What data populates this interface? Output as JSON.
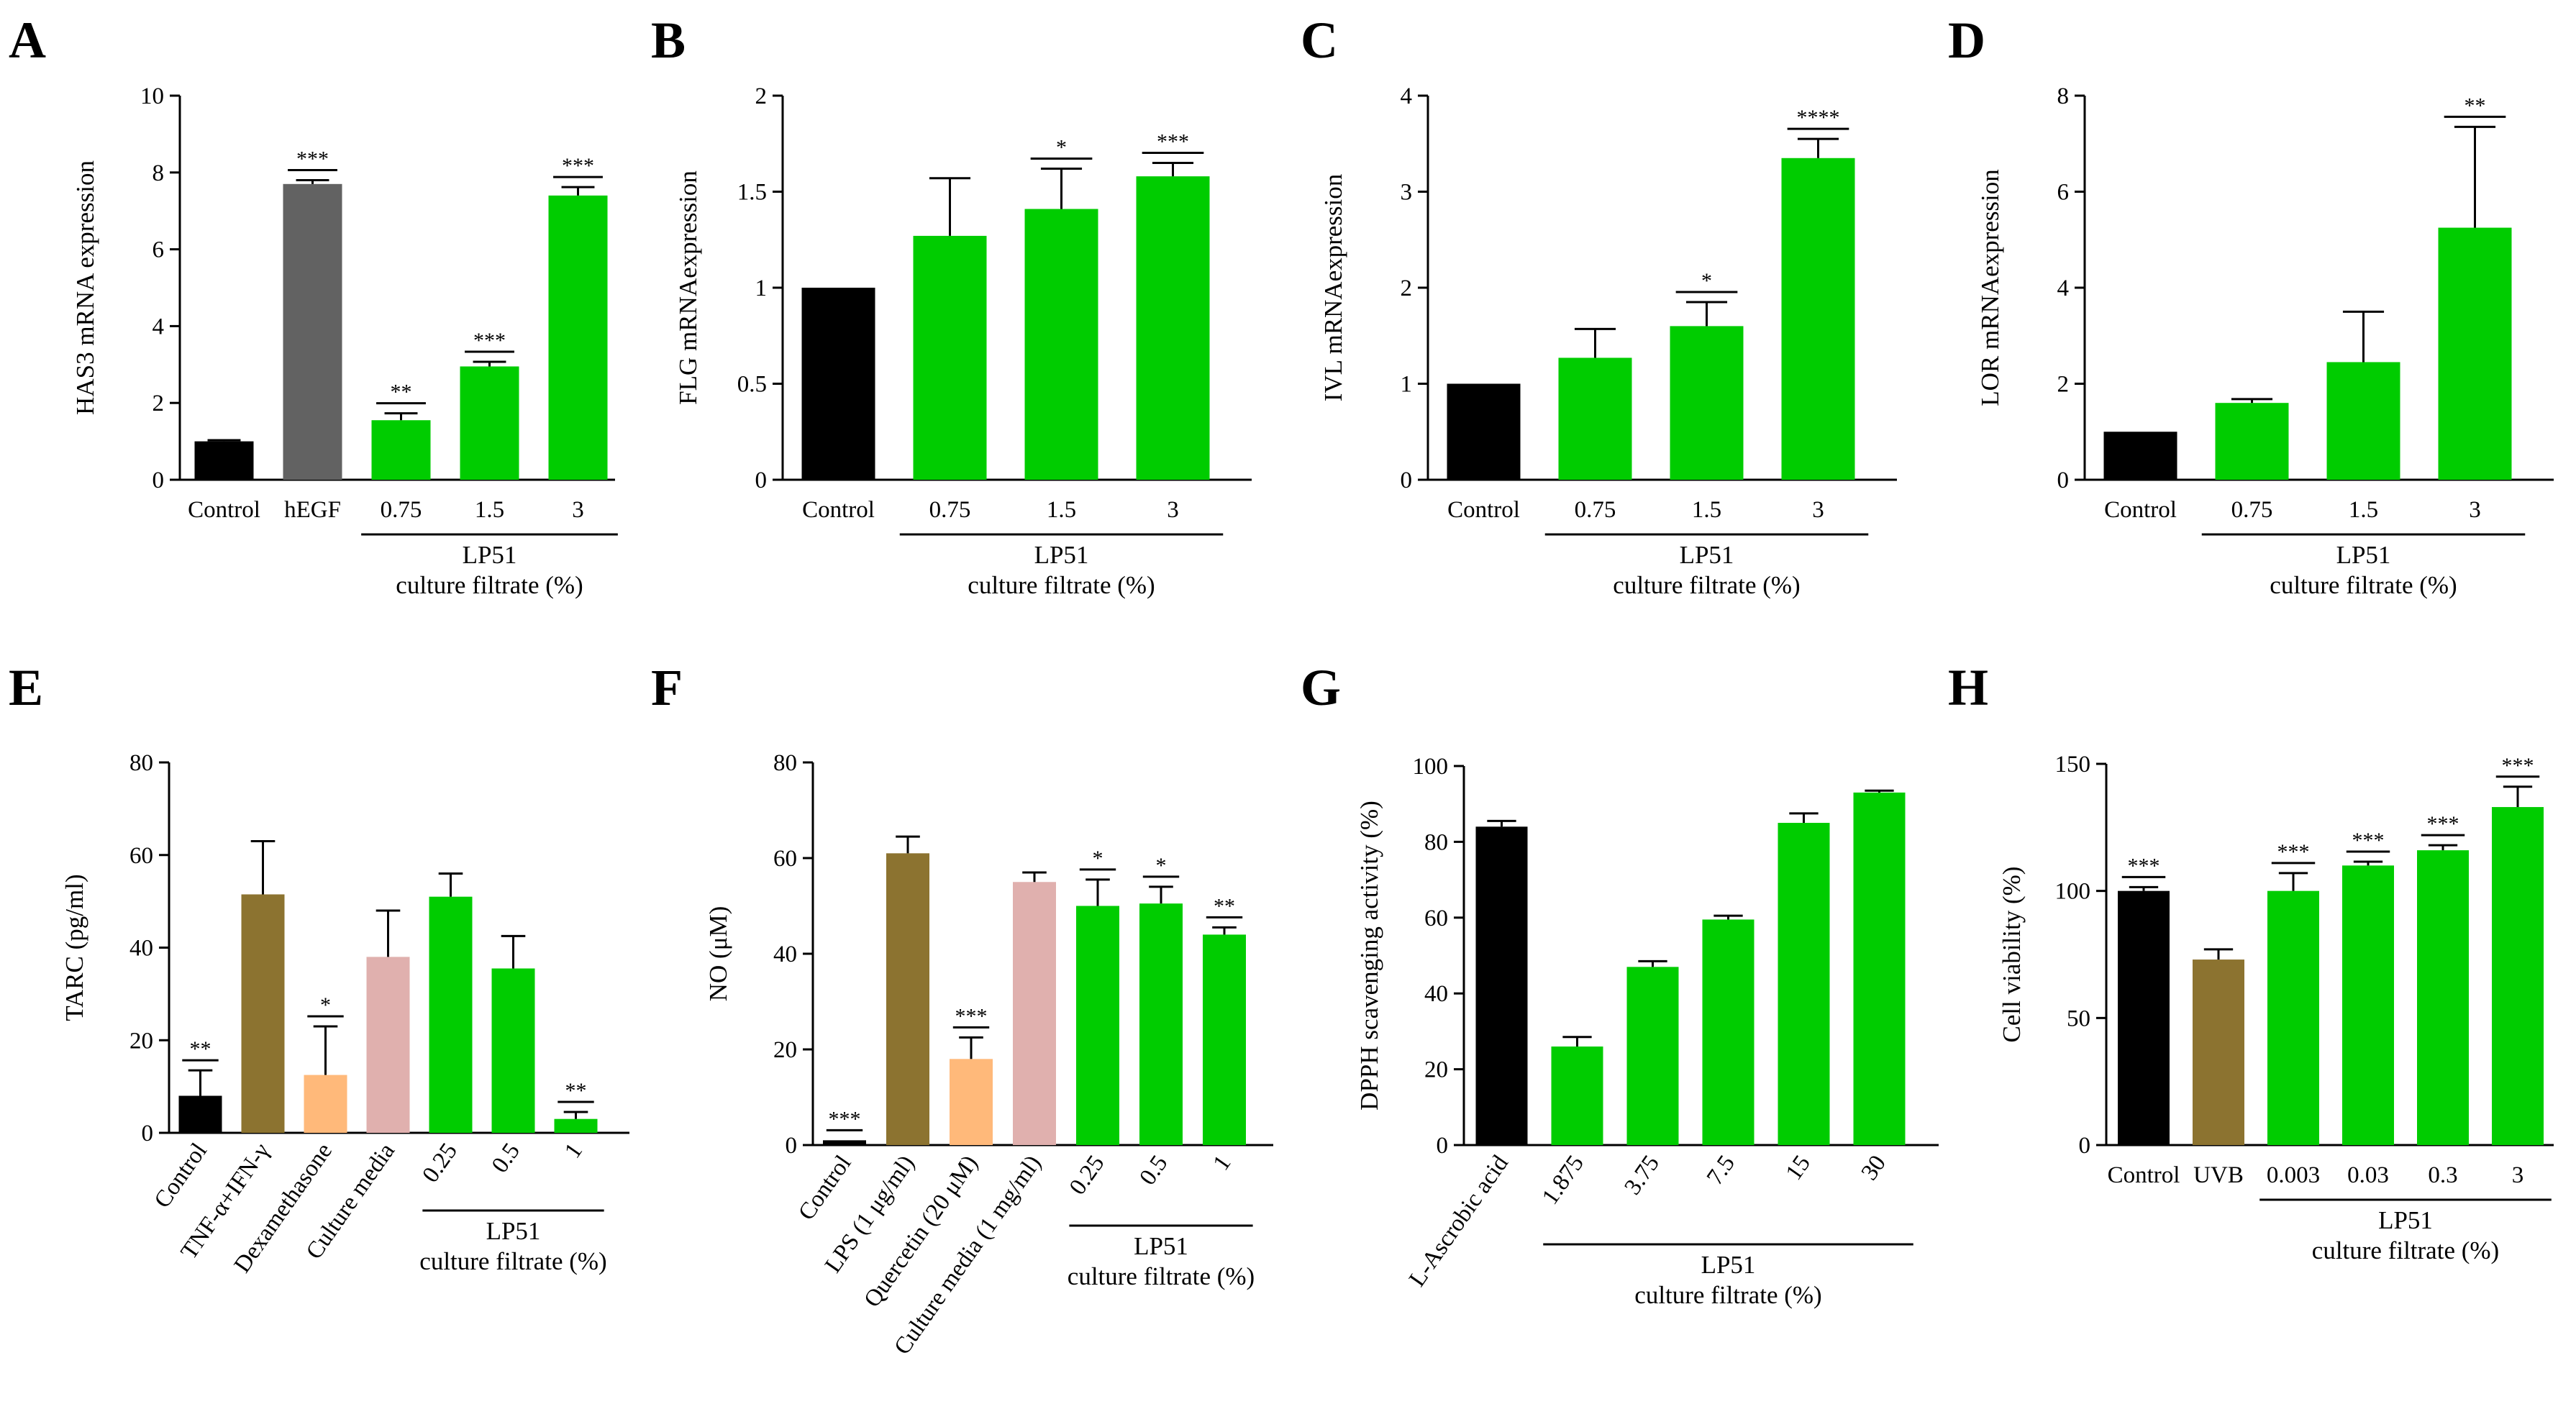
{
  "chart_data": [
    {
      "type": "bar",
      "panel": "A",
      "ylabel": "HAS3 mRNA expression",
      "ylim": [
        0,
        10
      ],
      "yticks": [
        0,
        2,
        4,
        6,
        8,
        10
      ],
      "categories": [
        "Control",
        "hEGF",
        "0.75",
        "1.5",
        "3"
      ],
      "values": [
        1.0,
        7.7,
        1.55,
        2.95,
        7.4
      ],
      "errors": [
        0.03,
        0.1,
        0.18,
        0.12,
        0.22
      ],
      "colors": [
        "#000000",
        "#626262",
        "#00cc00",
        "#00cc00",
        "#00cc00"
      ],
      "significance": [
        "",
        "***",
        "**",
        "***",
        "***"
      ],
      "group": {
        "line1": "LP51",
        "line2": "culture filtrate (%)",
        "start": 2,
        "end": 4
      },
      "rotate_labels": false
    },
    {
      "type": "bar",
      "panel": "B",
      "ylabel": "FLG mRNAexpression",
      "ylim": [
        0,
        2.0
      ],
      "yticks": [
        0.0,
        0.5,
        1.0,
        1.5,
        2.0
      ],
      "categories": [
        "Control",
        "0.75",
        "1.5",
        "3"
      ],
      "values": [
        1.0,
        1.27,
        1.41,
        1.58
      ],
      "errors": [
        0,
        0.3,
        0.21,
        0.07
      ],
      "colors": [
        "#000000",
        "#00cc00",
        "#00cc00",
        "#00cc00"
      ],
      "significance": [
        "",
        "",
        "*",
        "***"
      ],
      "group": {
        "line1": "LP51",
        "line2": "culture filtrate (%)",
        "start": 1,
        "end": 3
      },
      "rotate_labels": false
    },
    {
      "type": "bar",
      "panel": "C",
      "ylabel": "IVL mRNAexpression",
      "ylim": [
        0,
        4
      ],
      "yticks": [
        0,
        1,
        2,
        3,
        4
      ],
      "categories": [
        "Control",
        "0.75",
        "1.5",
        "3"
      ],
      "values": [
        1.0,
        1.27,
        1.6,
        3.35
      ],
      "errors": [
        0,
        0.3,
        0.25,
        0.2
      ],
      "colors": [
        "#000000",
        "#00cc00",
        "#00cc00",
        "#00cc00"
      ],
      "significance": [
        "",
        "",
        "*",
        "****"
      ],
      "group": {
        "line1": "LP51",
        "line2": "culture filtrate (%)",
        "start": 1,
        "end": 3
      },
      "rotate_labels": false
    },
    {
      "type": "bar",
      "panel": "D",
      "ylabel": "LOR mRNAexpression",
      "ylim": [
        0,
        8
      ],
      "yticks": [
        0,
        2,
        4,
        6,
        8
      ],
      "categories": [
        "Control",
        "0.75",
        "1.5",
        "3"
      ],
      "values": [
        1.0,
        1.6,
        2.45,
        5.25
      ],
      "errors": [
        0,
        0.08,
        1.05,
        2.1
      ],
      "colors": [
        "#000000",
        "#00cc00",
        "#00cc00",
        "#00cc00"
      ],
      "significance": [
        "",
        "",
        "",
        "**"
      ],
      "group": {
        "line1": "LP51",
        "line2": "culture filtrate (%)",
        "start": 1,
        "end": 3
      },
      "rotate_labels": false
    },
    {
      "type": "bar",
      "panel": "E",
      "ylabel": "TARC (pg/ml)",
      "ylim": [
        0,
        80
      ],
      "yticks": [
        0,
        20,
        40,
        60,
        80
      ],
      "categories": [
        "Control",
        "TNF-α+IFN-γ",
        "Dexamethasone",
        "Culture media",
        "0.25",
        "0.5",
        "1"
      ],
      "values": [
        8,
        51.5,
        12.5,
        38,
        51,
        35.5,
        3
      ],
      "errors": [
        5.5,
        11.5,
        10.5,
        10,
        5,
        7,
        1.5
      ],
      "colors": [
        "#000000",
        "#8c7330",
        "#ffb97a",
        "#e0b0ae",
        "#00cc00",
        "#00cc00",
        "#00cc00"
      ],
      "significance": [
        "**",
        "",
        "*",
        "",
        "",
        "",
        "**"
      ],
      "group": {
        "line1": "LP51",
        "line2": "culture filtrate (%)",
        "start": 4,
        "end": 6
      },
      "rotate_labels": true
    },
    {
      "type": "bar",
      "panel": "F",
      "ylabel": "NO (μM)",
      "ylim": [
        0,
        80
      ],
      "yticks": [
        0,
        20,
        40,
        60,
        80
      ],
      "categories": [
        "Control",
        "LPS (1 μg/ml)",
        "Quercetin (20 μM)",
        "Culture media (1 mg/ml)",
        "0.25",
        "0.5",
        "1"
      ],
      "values": [
        1,
        61,
        18,
        55,
        50,
        50.5,
        44
      ],
      "errors": [
        0,
        3.5,
        4.5,
        2,
        5.5,
        3.5,
        1.5
      ],
      "colors": [
        "#000000",
        "#8c7330",
        "#ffb97a",
        "#e0b0ae",
        "#00cc00",
        "#00cc00",
        "#00cc00"
      ],
      "significance": [
        "***",
        "",
        "***",
        "",
        "*",
        "*",
        "**"
      ],
      "group": {
        "line1": "LP51",
        "line2": "culture filtrate (%)",
        "start": 4,
        "end": 6
      },
      "rotate_labels": true
    },
    {
      "type": "bar",
      "panel": "G",
      "ylabel": "DPPH scavenging activity (%)",
      "ylim": [
        0,
        100
      ],
      "yticks": [
        0,
        20,
        40,
        60,
        80,
        100
      ],
      "categories": [
        "L-Ascrobic acid",
        "1.875",
        "3.75",
        "7.5",
        "15",
        "30"
      ],
      "values": [
        84,
        26,
        47,
        59.5,
        85,
        93
      ],
      "errors": [
        1.5,
        2.5,
        1.5,
        1,
        2.5,
        0.5
      ],
      "colors": [
        "#000000",
        "#00cc00",
        "#00cc00",
        "#00cc00",
        "#00cc00",
        "#00cc00"
      ],
      "significance": [
        "",
        "",
        "",
        "",
        "",
        ""
      ],
      "group": {
        "line1": "LP51",
        "line2": "culture filtrate (%)",
        "start": 1,
        "end": 5
      },
      "rotate_labels": true
    },
    {
      "type": "bar",
      "panel": "H",
      "ylabel": "Cell viability (%)",
      "ylim": [
        0,
        150
      ],
      "yticks": [
        0,
        50,
        100,
        150
      ],
      "categories": [
        "Control",
        "UVB",
        "0.003",
        "0.03",
        "0.3",
        "3"
      ],
      "values": [
        100,
        73,
        100,
        110,
        116,
        133
      ],
      "errors": [
        1.5,
        4,
        7,
        1.5,
        2,
        8
      ],
      "colors": [
        "#000000",
        "#8c7330",
        "#00cc00",
        "#00cc00",
        "#00cc00",
        "#00cc00"
      ],
      "significance": [
        "***",
        "",
        "***",
        "***",
        "***",
        "***"
      ],
      "group": {
        "line1": "LP51",
        "line2": "culture filtrate (%)",
        "start": 2,
        "end": 5
      },
      "rotate_labels": false
    }
  ]
}
